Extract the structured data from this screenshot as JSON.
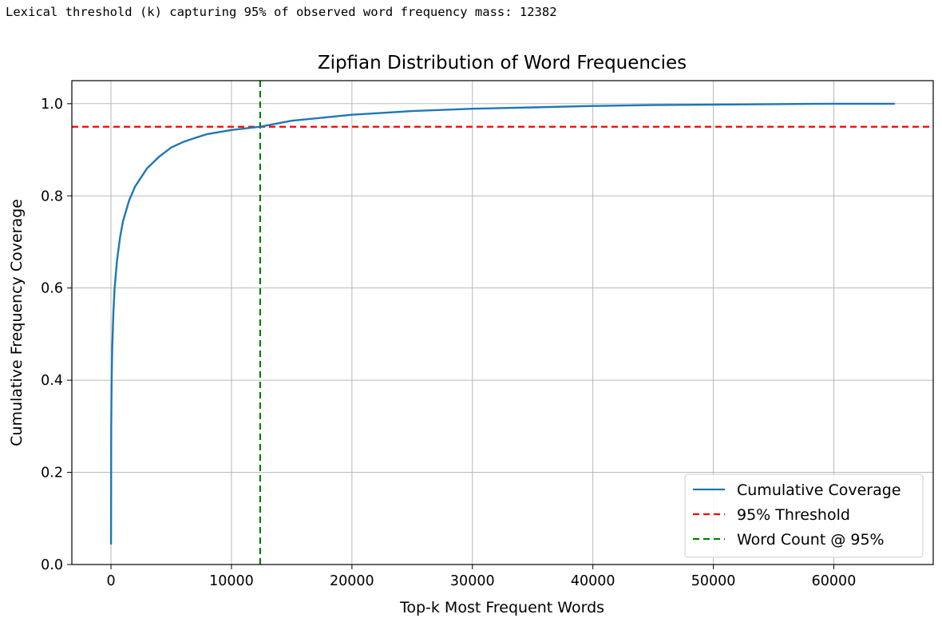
{
  "output_line": "Lexical threshold (k) capturing 95% of observed word frequency mass: 12382",
  "chart_data": {
    "type": "line",
    "title": "Zipfian Distribution of Word Frequencies",
    "xlabel": "Top-k Most Frequent Words",
    "ylabel": "Cumulative Frequency Coverage",
    "xlim": [
      -3250,
      68250
    ],
    "ylim": [
      0,
      1.05
    ],
    "xticks": [
      0,
      10000,
      20000,
      30000,
      40000,
      50000,
      60000
    ],
    "yticks": [
      0.0,
      0.2,
      0.4,
      0.6,
      0.8,
      1.0
    ],
    "grid": true,
    "legend_position": "lower-right",
    "series": [
      {
        "name": "Cumulative Coverage",
        "color": "#1f77b4",
        "x": [
          1,
          20,
          50,
          100,
          200,
          300,
          500,
          750,
          1000,
          1500,
          2000,
          3000,
          4000,
          5000,
          6000,
          7000,
          8000,
          10000,
          12382,
          15000,
          20000,
          25000,
          30000,
          35000,
          40000,
          45000,
          50000,
          55000,
          60000,
          65000
        ],
        "y": [
          0.045,
          0.3,
          0.39,
          0.47,
          0.55,
          0.6,
          0.66,
          0.71,
          0.745,
          0.79,
          0.82,
          0.86,
          0.885,
          0.905,
          0.917,
          0.926,
          0.934,
          0.943,
          0.95,
          0.963,
          0.976,
          0.984,
          0.989,
          0.992,
          0.995,
          0.997,
          0.998,
          0.999,
          1.0,
          1.0
        ]
      }
    ],
    "threshold": {
      "name": "95% Threshold",
      "y": 0.95,
      "color": "#ff0000"
    },
    "word_count": {
      "name": "Word Count @ 95%",
      "x": 12382,
      "color": "#008000"
    }
  }
}
